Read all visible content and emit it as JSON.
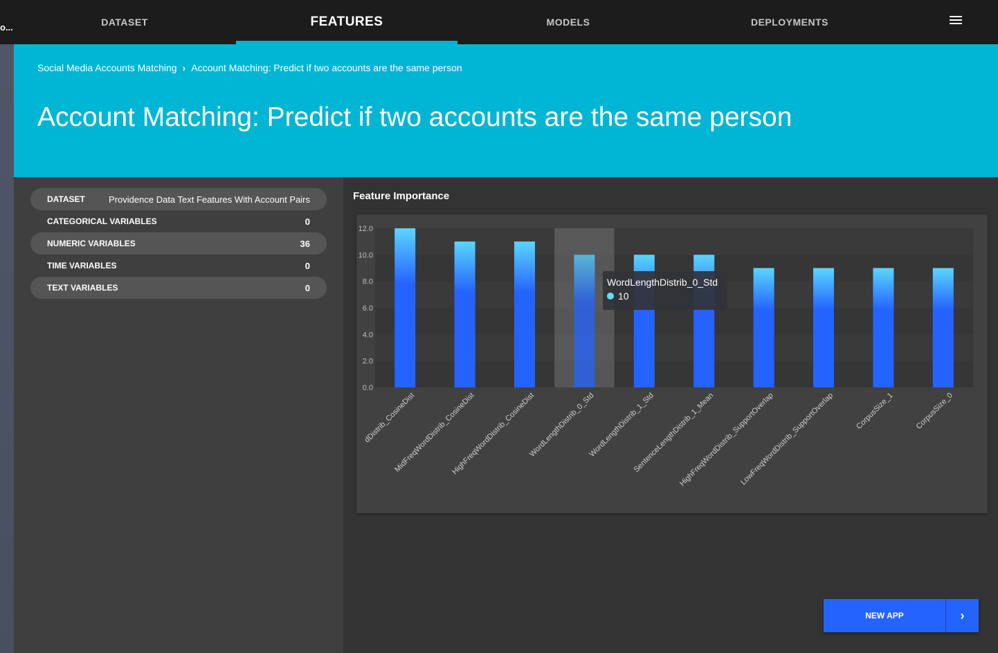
{
  "app": {
    "abbrev": "o..."
  },
  "nav": {
    "tabs": [
      {
        "label": "DATASET"
      },
      {
        "label": "FEATURES"
      },
      {
        "label": "MODELS"
      },
      {
        "label": "DEPLOYMENTS"
      }
    ],
    "active_tab": "FEATURES",
    "menu_icon": "hamburger-menu-icon"
  },
  "breadcrumb": {
    "items": [
      "Social Media Accounts Matching",
      "Account Matching: Predict if two accounts are the same person"
    ],
    "separator_icon": "chevron-right-icon"
  },
  "page": {
    "title": "Account Matching: Predict if two accounts are the same person"
  },
  "summary": {
    "dataset_label": "DATASET",
    "dataset_value": "Providence Data Text Features With Account Pairs",
    "rows": [
      {
        "label": "CATEGORICAL VARIABLES",
        "value": "0"
      },
      {
        "label": "NUMERIC VARIABLES",
        "value": "36"
      },
      {
        "label": "TIME VARIABLES",
        "value": "0"
      },
      {
        "label": "TEXT VARIABLES",
        "value": "0"
      }
    ]
  },
  "feature_importance": {
    "title": "Feature Importance",
    "tooltip": {
      "name": "WordLengthDistrib_0_Std",
      "value": "10"
    }
  },
  "chart_data": {
    "type": "bar",
    "title": "Feature Importance",
    "categories": [
      "dDistrib_CosineDist",
      "MidFreqWordDistrib_CosineDist",
      "HighFreqWordDistrib_CosineDist",
      "WordLengthDistrib_0_Std",
      "WordLengthDistrib_1_Std",
      "SentenceLengthDistrib_1_Mean",
      "HighFreqWordDistrib_SupportOverlap",
      "LowFreqWordDistrib_SupportOverlap",
      "CorpusSize_1",
      "CorpusSize_0"
    ],
    "values": [
      12,
      11,
      11,
      10,
      10,
      10,
      9,
      9,
      9,
      9
    ],
    "yticks": [
      "0.0",
      "2.0",
      "4.0",
      "6.0",
      "8.0",
      "10.0",
      "12.0"
    ],
    "ylim": [
      0,
      12
    ],
    "highlighted_index": 3,
    "bar_color_top": "#5ad6ff",
    "bar_color": "#2563ff",
    "grid": true
  },
  "actions": {
    "new_app_label": "NEW APP",
    "new_app_icon": "chevron-right-icon"
  }
}
